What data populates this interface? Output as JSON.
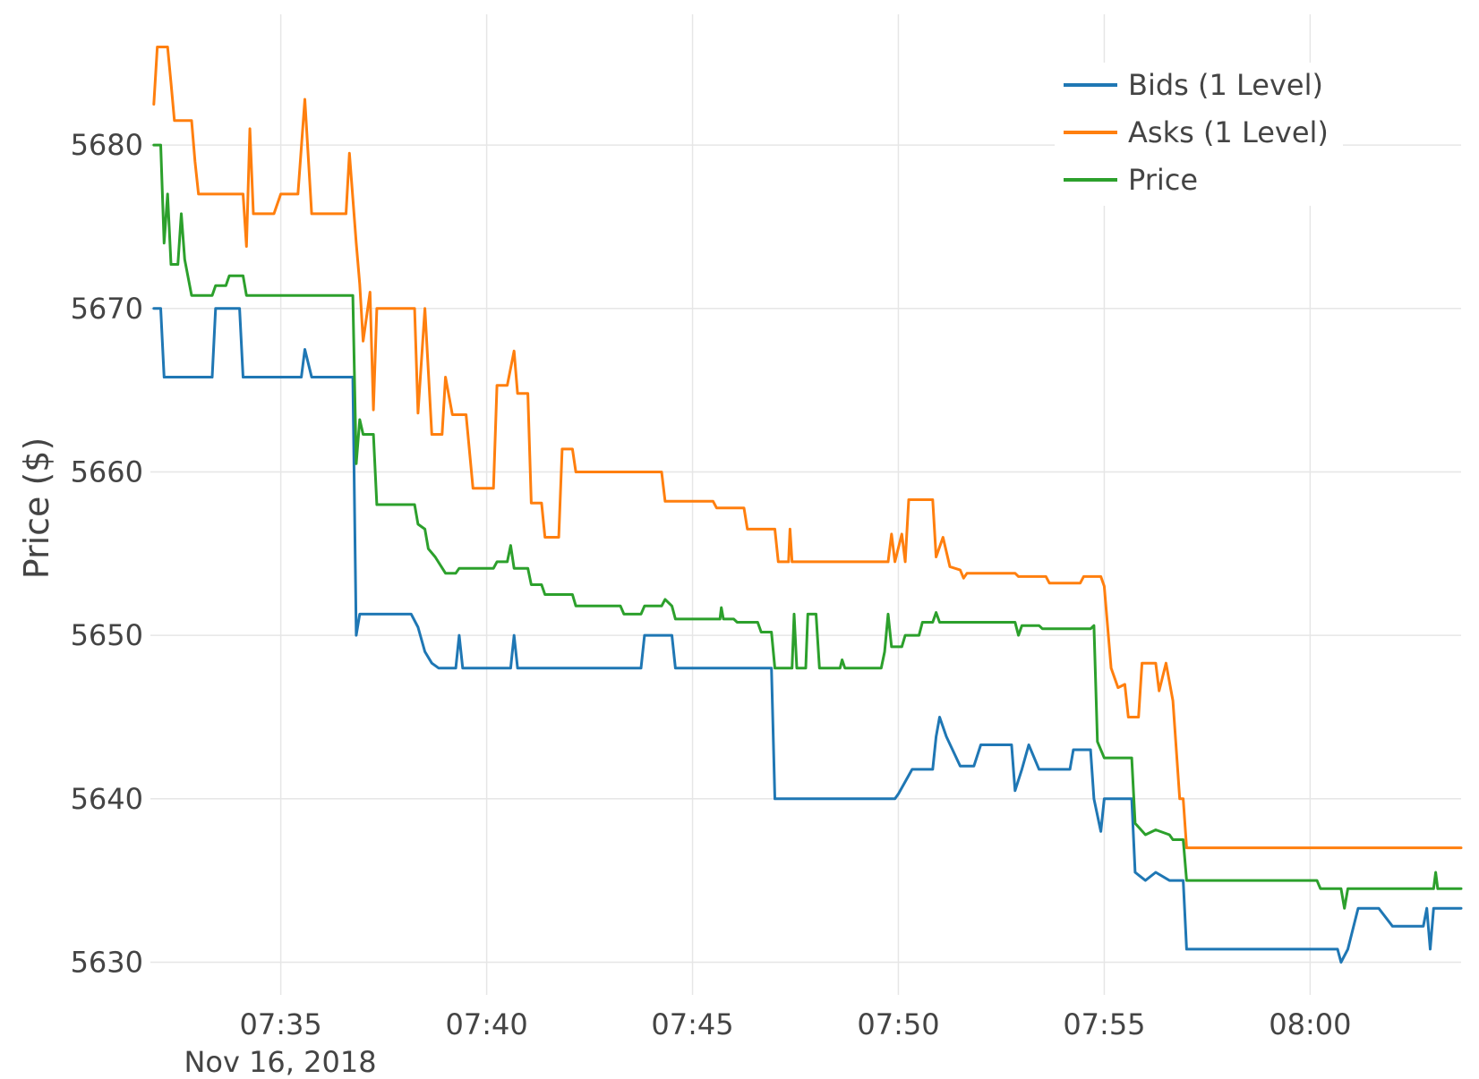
{
  "chart_data": {
    "type": "line",
    "title": "",
    "xlabel": "",
    "ylabel": "Price ($)",
    "date_label": "Nov 16, 2018",
    "x_unit": "time HH:MM on Nov 16, 2018",
    "xlim": [
      "07:31:50",
      "08:03:40"
    ],
    "ylim": [
      5628,
      5688
    ],
    "x_ticks": [
      "07:35",
      "07:40",
      "07:45",
      "07:50",
      "07:55",
      "08:00"
    ],
    "y_ticks": [
      5630,
      5640,
      5650,
      5660,
      5670,
      5680
    ],
    "grid": true,
    "legend_position": "top-right",
    "series": [
      {
        "name": "Bids (1 Level)",
        "color": "#1f77b4",
        "points": [
          [
            "07:31:55",
            5670
          ],
          [
            "07:32:05",
            5670
          ],
          [
            "07:32:10",
            5665.8
          ],
          [
            "07:33:20",
            5665.8
          ],
          [
            "07:33:25",
            5670
          ],
          [
            "07:34:00",
            5670
          ],
          [
            "07:34:05",
            5665.8
          ],
          [
            "07:35:30",
            5665.8
          ],
          [
            "07:35:35",
            5667.5
          ],
          [
            "07:35:45",
            5665.8
          ],
          [
            "07:36:45",
            5665.8
          ],
          [
            "07:36:50",
            5650
          ],
          [
            "07:36:55",
            5651.3
          ],
          [
            "07:38:10",
            5651.3
          ],
          [
            "07:38:20",
            5650.5
          ],
          [
            "07:38:30",
            5649
          ],
          [
            "07:38:40",
            5648.3
          ],
          [
            "07:38:50",
            5648
          ],
          [
            "07:39:15",
            5648
          ],
          [
            "07:39:20",
            5650
          ],
          [
            "07:39:25",
            5648
          ],
          [
            "07:40:35",
            5648
          ],
          [
            "07:40:40",
            5650
          ],
          [
            "07:40:45",
            5648
          ],
          [
            "07:43:45",
            5648
          ],
          [
            "07:43:50",
            5650
          ],
          [
            "07:44:30",
            5650
          ],
          [
            "07:44:35",
            5648
          ],
          [
            "07:46:55",
            5648
          ],
          [
            "07:47:00",
            5640
          ],
          [
            "07:49:55",
            5640
          ],
          [
            "07:50:00",
            5640.3
          ],
          [
            "07:50:20",
            5641.8
          ],
          [
            "07:50:50",
            5641.8
          ],
          [
            "07:50:55",
            5643.8
          ],
          [
            "07:51:00",
            5645
          ],
          [
            "07:51:10",
            5643.8
          ],
          [
            "07:51:30",
            5642
          ],
          [
            "07:51:50",
            5642
          ],
          [
            "07:52:00",
            5643.3
          ],
          [
            "07:52:45",
            5643.3
          ],
          [
            "07:52:50",
            5640.5
          ],
          [
            "07:53:00",
            5641.8
          ],
          [
            "07:53:10",
            5643.3
          ],
          [
            "07:53:25",
            5641.8
          ],
          [
            "07:54:10",
            5641.8
          ],
          [
            "07:54:15",
            5643
          ],
          [
            "07:54:40",
            5643
          ],
          [
            "07:54:45",
            5640
          ],
          [
            "07:54:55",
            5638
          ],
          [
            "07:55:00",
            5640
          ],
          [
            "07:55:40",
            5640
          ],
          [
            "07:55:45",
            5635.5
          ],
          [
            "07:56:00",
            5635
          ],
          [
            "07:56:15",
            5635.5
          ],
          [
            "07:56:35",
            5635
          ],
          [
            "07:56:55",
            5635
          ],
          [
            "07:57:00",
            5630.8
          ],
          [
            "08:00:40",
            5630.8
          ],
          [
            "08:00:45",
            5630
          ],
          [
            "08:00:55",
            5630.8
          ],
          [
            "08:01:10",
            5633.3
          ],
          [
            "08:01:40",
            5633.3
          ],
          [
            "08:02:00",
            5632.2
          ],
          [
            "08:02:45",
            5632.2
          ],
          [
            "08:02:50",
            5633.3
          ],
          [
            "08:02:55",
            5630.8
          ],
          [
            "08:03:00",
            5633.3
          ],
          [
            "08:03:40",
            5633.3
          ]
        ]
      },
      {
        "name": "Asks (1 Level)",
        "color": "#ff7f0e",
        "points": [
          [
            "07:31:55",
            5682.5
          ],
          [
            "07:32:00",
            5686
          ],
          [
            "07:32:15",
            5686
          ],
          [
            "07:32:20",
            5683.8
          ],
          [
            "07:32:25",
            5681.5
          ],
          [
            "07:32:50",
            5681.5
          ],
          [
            "07:32:55",
            5679
          ],
          [
            "07:33:00",
            5677
          ],
          [
            "07:34:05",
            5677
          ],
          [
            "07:34:10",
            5673.8
          ],
          [
            "07:34:15",
            5681
          ],
          [
            "07:34:20",
            5675.8
          ],
          [
            "07:34:50",
            5675.8
          ],
          [
            "07:35:00",
            5677
          ],
          [
            "07:35:25",
            5677
          ],
          [
            "07:35:35",
            5682.8
          ],
          [
            "07:35:45",
            5675.8
          ],
          [
            "07:36:35",
            5675.8
          ],
          [
            "07:36:40",
            5679.5
          ],
          [
            "07:36:50",
            5674
          ],
          [
            "07:36:55",
            5671.5
          ],
          [
            "07:37:00",
            5668
          ],
          [
            "07:37:10",
            5671
          ],
          [
            "07:37:15",
            5663.8
          ],
          [
            "07:37:20",
            5670
          ],
          [
            "07:38:15",
            5670
          ],
          [
            "07:38:20",
            5663.6
          ],
          [
            "07:38:30",
            5670
          ],
          [
            "07:38:40",
            5662.3
          ],
          [
            "07:38:55",
            5662.3
          ],
          [
            "07:39:00",
            5665.8
          ],
          [
            "07:39:10",
            5663.5
          ],
          [
            "07:39:30",
            5663.5
          ],
          [
            "07:39:40",
            5659
          ],
          [
            "07:40:10",
            5659
          ],
          [
            "07:40:15",
            5665.3
          ],
          [
            "07:40:30",
            5665.3
          ],
          [
            "07:40:40",
            5667.4
          ],
          [
            "07:40:45",
            5664.8
          ],
          [
            "07:41:00",
            5664.8
          ],
          [
            "07:41:05",
            5658.1
          ],
          [
            "07:41:20",
            5658.1
          ],
          [
            "07:41:25",
            5656
          ],
          [
            "07:41:45",
            5656
          ],
          [
            "07:41:50",
            5661.4
          ],
          [
            "07:42:05",
            5661.4
          ],
          [
            "07:42:10",
            5660
          ],
          [
            "07:44:15",
            5660
          ],
          [
            "07:44:20",
            5658.2
          ],
          [
            "07:45:30",
            5658.2
          ],
          [
            "07:45:35",
            5657.8
          ],
          [
            "07:46:15",
            5657.8
          ],
          [
            "07:46:20",
            5656.5
          ],
          [
            "07:47:00",
            5656.5
          ],
          [
            "07:47:05",
            5654.5
          ],
          [
            "07:47:20",
            5654.5
          ],
          [
            "07:47:22",
            5656.5
          ],
          [
            "07:47:25",
            5654.5
          ],
          [
            "07:49:45",
            5654.5
          ],
          [
            "07:49:50",
            5656.2
          ],
          [
            "07:49:55",
            5654.5
          ],
          [
            "07:50:05",
            5656.2
          ],
          [
            "07:50:10",
            5654.5
          ],
          [
            "07:50:15",
            5658.3
          ],
          [
            "07:50:50",
            5658.3
          ],
          [
            "07:50:55",
            5654.8
          ],
          [
            "07:51:05",
            5656
          ],
          [
            "07:51:15",
            5654.2
          ],
          [
            "07:51:30",
            5654
          ],
          [
            "07:51:35",
            5653.5
          ],
          [
            "07:51:40",
            5653.8
          ],
          [
            "07:52:50",
            5653.8
          ],
          [
            "07:52:55",
            5653.6
          ],
          [
            "07:53:35",
            5653.6
          ],
          [
            "07:53:40",
            5653.2
          ],
          [
            "07:54:25",
            5653.2
          ],
          [
            "07:54:30",
            5653.6
          ],
          [
            "07:54:55",
            5653.6
          ],
          [
            "07:55:00",
            5653
          ],
          [
            "07:55:10",
            5648
          ],
          [
            "07:55:20",
            5646.8
          ],
          [
            "07:55:30",
            5647
          ],
          [
            "07:55:35",
            5645
          ],
          [
            "07:55:50",
            5645
          ],
          [
            "07:55:55",
            5648.3
          ],
          [
            "07:56:15",
            5648.3
          ],
          [
            "07:56:20",
            5646.6
          ],
          [
            "07:56:30",
            5648.3
          ],
          [
            "07:56:40",
            5646
          ],
          [
            "07:56:50",
            5640
          ],
          [
            "07:56:55",
            5640
          ],
          [
            "07:57:00",
            5637
          ],
          [
            "08:03:40",
            5637
          ]
        ]
      },
      {
        "name": "Price",
        "color": "#2ca02c",
        "points": [
          [
            "07:31:55",
            5680
          ],
          [
            "07:32:05",
            5680
          ],
          [
            "07:32:10",
            5674
          ],
          [
            "07:32:15",
            5677
          ],
          [
            "07:32:20",
            5672.7
          ],
          [
            "07:32:30",
            5672.7
          ],
          [
            "07:32:35",
            5675.8
          ],
          [
            "07:32:40",
            5673
          ],
          [
            "07:32:50",
            5670.8
          ],
          [
            "07:33:20",
            5670.8
          ],
          [
            "07:33:25",
            5671.4
          ],
          [
            "07:33:40",
            5671.4
          ],
          [
            "07:33:45",
            5672
          ],
          [
            "07:34:05",
            5672
          ],
          [
            "07:34:10",
            5670.8
          ],
          [
            "07:36:45",
            5670.8
          ],
          [
            "07:36:50",
            5660.5
          ],
          [
            "07:36:55",
            5663.2
          ],
          [
            "07:37:00",
            5662.3
          ],
          [
            "07:37:15",
            5662.3
          ],
          [
            "07:37:20",
            5658
          ],
          [
            "07:38:15",
            5658
          ],
          [
            "07:38:20",
            5656.8
          ],
          [
            "07:38:30",
            5656.5
          ],
          [
            "07:38:35",
            5655.3
          ],
          [
            "07:38:45",
            5654.8
          ],
          [
            "07:39:00",
            5653.8
          ],
          [
            "07:39:15",
            5653.8
          ],
          [
            "07:39:20",
            5654.1
          ],
          [
            "07:40:10",
            5654.1
          ],
          [
            "07:40:15",
            5654.5
          ],
          [
            "07:40:30",
            5654.5
          ],
          [
            "07:40:35",
            5655.5
          ],
          [
            "07:40:40",
            5654.1
          ],
          [
            "07:41:00",
            5654.1
          ],
          [
            "07:41:05",
            5653.1
          ],
          [
            "07:41:20",
            5653.1
          ],
          [
            "07:41:25",
            5652.5
          ],
          [
            "07:42:05",
            5652.5
          ],
          [
            "07:42:10",
            5651.8
          ],
          [
            "07:43:15",
            5651.8
          ],
          [
            "07:43:20",
            5651.3
          ],
          [
            "07:43:45",
            5651.3
          ],
          [
            "07:43:50",
            5651.8
          ],
          [
            "07:44:15",
            5651.8
          ],
          [
            "07:44:20",
            5652.2
          ],
          [
            "07:44:30",
            5651.8
          ],
          [
            "07:44:35",
            5651
          ],
          [
            "07:45:40",
            5651
          ],
          [
            "07:45:42",
            5651.7
          ],
          [
            "07:45:45",
            5651
          ],
          [
            "07:46:00",
            5651
          ],
          [
            "07:46:05",
            5650.8
          ],
          [
            "07:46:35",
            5650.8
          ],
          [
            "07:46:40",
            5650.2
          ],
          [
            "07:46:55",
            5650.2
          ],
          [
            "07:47:00",
            5648
          ],
          [
            "07:47:25",
            5648
          ],
          [
            "07:47:28",
            5651.3
          ],
          [
            "07:47:32",
            5648
          ],
          [
            "07:47:45",
            5648
          ],
          [
            "07:47:48",
            5651.3
          ],
          [
            "07:48:00",
            5651.3
          ],
          [
            "07:48:05",
            5648
          ],
          [
            "07:48:35",
            5648
          ],
          [
            "07:48:38",
            5648.5
          ],
          [
            "07:48:42",
            5648
          ],
          [
            "07:49:35",
            5648
          ],
          [
            "07:49:40",
            5649
          ],
          [
            "07:49:45",
            5651.3
          ],
          [
            "07:49:50",
            5649.3
          ],
          [
            "07:50:05",
            5649.3
          ],
          [
            "07:50:10",
            5650
          ],
          [
            "07:50:30",
            5650
          ],
          [
            "07:50:35",
            5650.8
          ],
          [
            "07:50:50",
            5650.8
          ],
          [
            "07:50:55",
            5651.4
          ],
          [
            "07:51:00",
            5650.8
          ],
          [
            "07:52:50",
            5650.8
          ],
          [
            "07:52:55",
            5650
          ],
          [
            "07:53:00",
            5650.6
          ],
          [
            "07:53:25",
            5650.6
          ],
          [
            "07:53:30",
            5650.4
          ],
          [
            "07:54:40",
            5650.4
          ],
          [
            "07:54:45",
            5650.6
          ],
          [
            "07:54:50",
            5643.5
          ],
          [
            "07:55:00",
            5642.5
          ],
          [
            "07:55:40",
            5642.5
          ],
          [
            "07:55:45",
            5638.5
          ],
          [
            "07:56:00",
            5637.8
          ],
          [
            "07:56:15",
            5638.1
          ],
          [
            "07:56:35",
            5637.8
          ],
          [
            "07:56:40",
            5637.5
          ],
          [
            "07:56:55",
            5637.5
          ],
          [
            "07:57:00",
            5635
          ],
          [
            "08:00:10",
            5635
          ],
          [
            "08:00:15",
            5634.5
          ],
          [
            "08:00:45",
            5634.5
          ],
          [
            "08:00:50",
            5633.3
          ],
          [
            "08:00:55",
            5634.5
          ],
          [
            "08:03:00",
            5634.5
          ],
          [
            "08:03:03",
            5635.5
          ],
          [
            "08:03:06",
            5634.5
          ],
          [
            "08:03:40",
            5634.5
          ]
        ]
      }
    ]
  }
}
